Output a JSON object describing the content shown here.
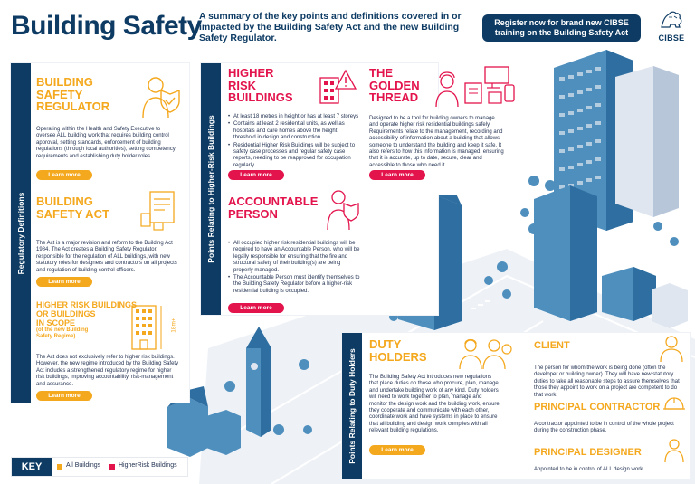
{
  "header": {
    "title": "Building Safety",
    "summary": "A summary of the key points and definitions covered in or impacted by the Building Safety Act and the new Building Safety Regulator.",
    "register": "Register now for brand new CIBSE training on the Building Safety Act",
    "logo_text": "CIBSE"
  },
  "sidebars": {
    "regulatory": "Regulatory Definitions",
    "higher_risk": "Points Relating to Higher-Risk Buildings",
    "duty_holders": "Points Relating to Duty Holders"
  },
  "regulator": {
    "heading_1": "BUILDING",
    "heading_2": "SAFETY",
    "heading_3": "REGULATOR",
    "body": "Operating within the Health and Safety Executive to oversee ALL building work that requires building control approval, setting standards, enforcement of building regulations (through local authorities), setting competency requirements and establishing duty holder roles.",
    "button": "Learn more"
  },
  "act": {
    "heading_1": "BUILDING",
    "heading_2": "SAFETY ACT",
    "body": "The Act is a major revision and reform to the Building Act 1984. The Act creates a Building Safety Regulator, responsible for the regulation of ALL buildings, with new statutory roles for designers and contractors on all projects and regulation of building control officers.",
    "button": "Learn more"
  },
  "hrb_scope": {
    "heading_1": "HIGHER RISK BUILDINGS",
    "heading_2": "OR BUILDINGS",
    "heading_3": "IN SCOPE",
    "sub_1": "(of the new Building",
    "sub_2": "Safety Regime)",
    "height_label": "18m+",
    "body": "The Act does not exclusively refer to higher risk buildings. However, the new regime introduced by the Building Safety Act includes a strengthened regulatory regime for higher risk buildings, improving accountability, risk-management and assurance.",
    "button": "Learn more"
  },
  "hrb": {
    "heading_1": "HIGHER",
    "heading_2": "RISK",
    "heading_3": "BUILDINGS",
    "bullets": [
      "At least 18 metres in height or has at least 7 storeys",
      "Contains at least 2 residential units, as well as hospitals and care homes above the height threshold in design and construction",
      "Residential Higher Risk Buildings will be subject to safety case processes and regular safety case reports, needing to be reapproved for occupation regularly"
    ],
    "button": "Learn more"
  },
  "golden": {
    "heading_1": "THE",
    "heading_2": "GOLDEN",
    "heading_3": "THREAD",
    "body": "Designed to be a tool for building owners to manage and operate higher risk residential buildings safely. Requirements relate to the management, recording and accessibility of information about a building that allows someone to understand the building and keep it safe. It also refers to how this information is managed, ensuring that it is accurate, up to date, secure, clear and accessible to those who need it.",
    "button": "Learn more"
  },
  "accountable": {
    "heading_1": "ACCOUNTABLE",
    "heading_2": "PERSON",
    "bullets": [
      "All occupied higher risk residential buildings will be required to have an Accountable Person, who will be legally responsible for ensuring that the fire and structural safety of their building(s) are being properly managed.",
      "The Accountable Person must identify themselves to the Building Safety Regulator before a higher-risk residential building is occupied."
    ],
    "button": "Learn more"
  },
  "duty": {
    "heading_1": "DUTY",
    "heading_2": "HOLDERS",
    "body": "The Building Safety Act introduces new regulations that place duties on those who procure, plan, manage and undertake building work of any kind. Duty holders will need to work together to plan, manage and monitor the design work and the building work, ensure they cooperate and communicate with each other, coordinate work and have systems in place to ensure that all building and design work complies with all relevant building regulations.",
    "button": "Learn more"
  },
  "client": {
    "heading": "CLIENT",
    "body": "The person for whom the work is being done (often the developer or building owner). They will have new statutory duties to take all reasonable steps to assure themselves that those they appoint to work on a project are competent to do that work."
  },
  "contractor": {
    "heading": "PRINCIPAL CONTRACTOR",
    "body": "A contractor appointed to be in control of the whole project during the construction phase."
  },
  "designer": {
    "heading": "PRINCIPAL DESIGNER",
    "body": "Appointed to be in control of ALL design work."
  },
  "key": {
    "label": "KEY",
    "all_buildings": "All Buildings",
    "higher_risk": "HigherRisk Buildings",
    "colors": {
      "yellow": "#f4a81d",
      "red": "#e3134c"
    }
  },
  "colors": {
    "navy": "#0d3b63",
    "yellow": "#f4a81d",
    "red": "#e3134c",
    "city_blue": "#4f8fbd",
    "city_light": "#dfe6f0"
  }
}
